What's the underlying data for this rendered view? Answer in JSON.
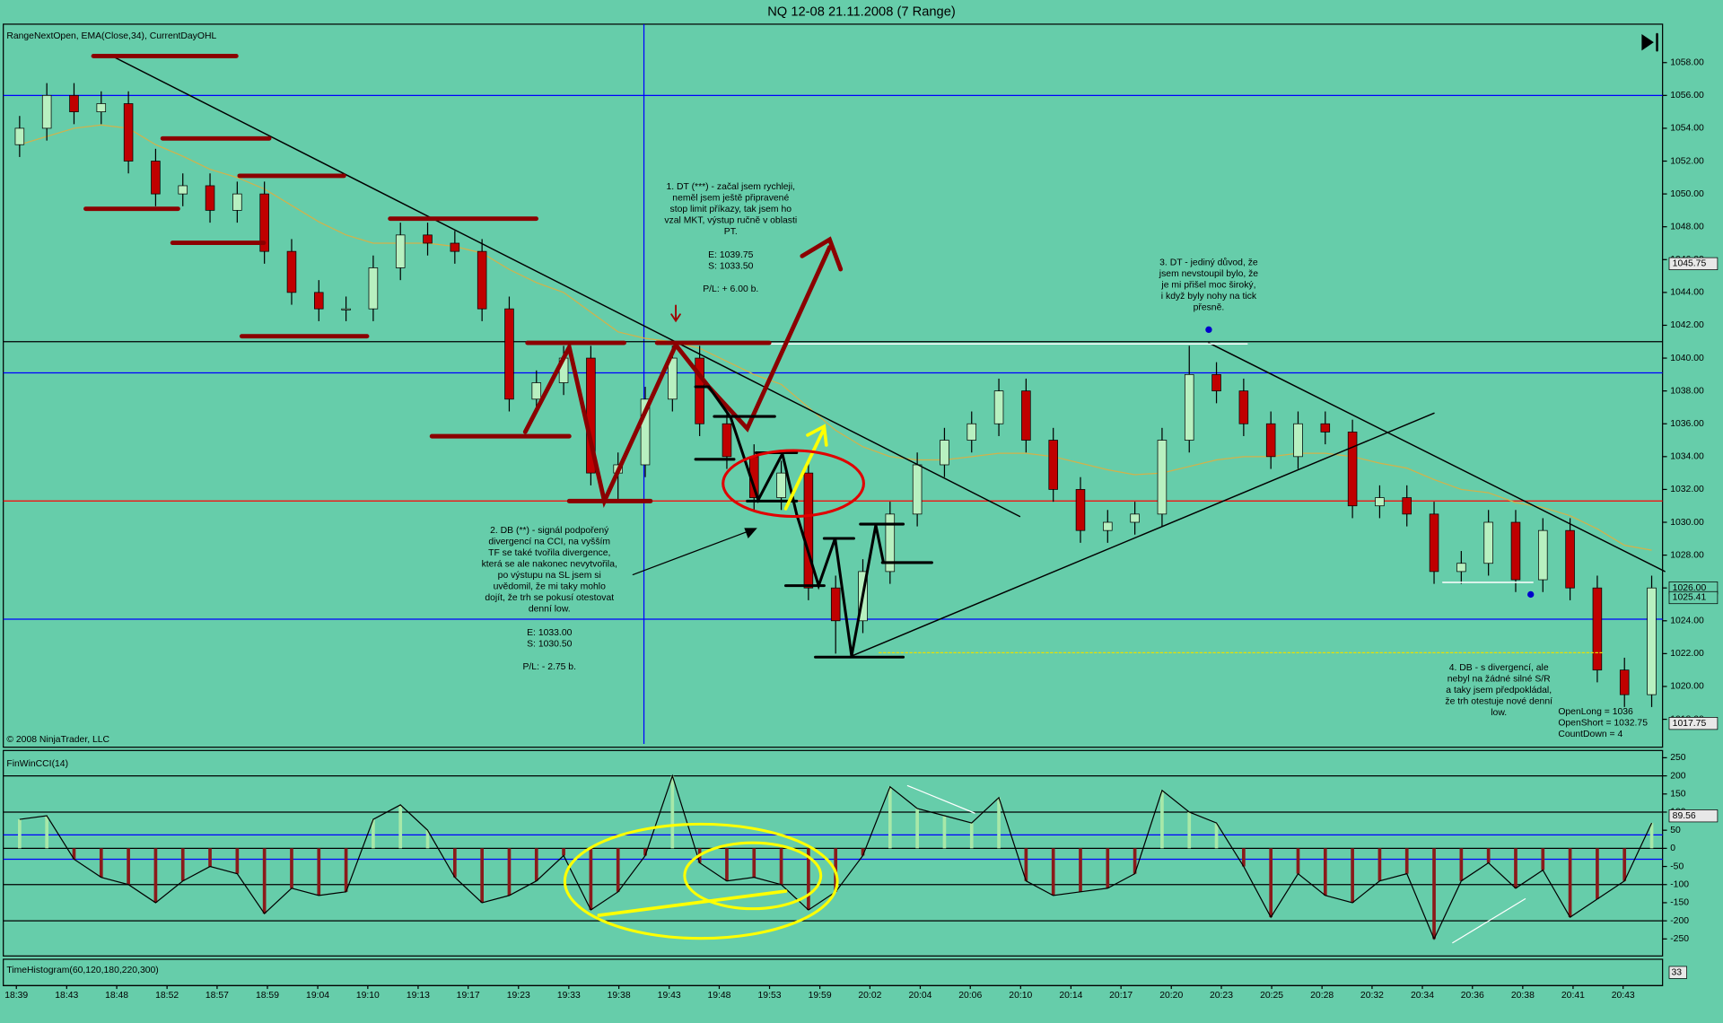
{
  "chart_data": [
    {
      "type": "candlestick",
      "title": "NQ 12-08  21.11.2008 (7 Range)",
      "subtitle": "RangeNextOpen, EMA(Close,34), CurrentDayOHL",
      "copyright": "© 2008 NinjaTrader, LLC",
      "x": [
        0,
        1,
        2,
        3,
        4,
        5,
        6,
        7,
        8,
        9,
        10,
        11,
        12,
        13,
        14,
        15,
        16,
        17,
        18,
        19,
        20,
        21,
        22,
        23,
        24,
        25,
        26,
        27,
        28,
        29,
        30,
        31,
        32,
        33,
        34,
        35,
        36,
        37,
        38,
        39,
        40,
        41,
        42,
        43,
        44,
        45,
        46,
        47,
        48,
        49,
        50,
        51,
        52,
        53,
        54,
        55,
        56,
        57,
        58,
        59,
        60
      ],
      "open": [
        1053,
        1054,
        1056,
        1055,
        1055.5,
        1052,
        1050,
        1050.5,
        1049,
        1050,
        1046.5,
        1044,
        1043,
        1043,
        1045.5,
        1047.5,
        1047,
        1046.5,
        1043,
        1037.5,
        1038.5,
        1040,
        1033,
        1033.5,
        1037.5,
        1040,
        1036,
        1034,
        1031.5,
        1033,
        1026,
        1024,
        1027,
        1030.5,
        1033.5,
        1035,
        1036,
        1038,
        1035,
        1032,
        1029.5,
        1030,
        1030.5,
        1035,
        1039,
        1038,
        1036,
        1034,
        1036,
        1035.5,
        1031,
        1031.5,
        1030.5,
        1027,
        1027.5,
        1030,
        1026.5,
        1029.5,
        1026,
        1021,
        1019.5
      ],
      "high": [
        1054.75,
        1056.75,
        1056.75,
        1056.25,
        1056.25,
        1052.75,
        1051.25,
        1051.25,
        1050.75,
        1050.75,
        1047.25,
        1044.75,
        1043.75,
        1046.25,
        1048.25,
        1048.25,
        1047.75,
        1047.25,
        1043.75,
        1039.25,
        1040.75,
        1040.75,
        1034.25,
        1038.25,
        1040.75,
        1040.75,
        1036.75,
        1034.75,
        1033.75,
        1033.75,
        1026.75,
        1027.75,
        1031.25,
        1034.25,
        1035.75,
        1036.75,
        1038.75,
        1038.75,
        1035.75,
        1032.75,
        1030.75,
        1031.25,
        1035.75,
        1040.75,
        1039.75,
        1038.75,
        1036.75,
        1036.75,
        1036.75,
        1036.25,
        1032.25,
        1032.25,
        1031.25,
        1028.25,
        1030.75,
        1030.75,
        1030.25,
        1030.25,
        1026.75,
        1021.75,
        1026.75
      ],
      "low": [
        1052.25,
        1053.25,
        1054.25,
        1054.25,
        1051.25,
        1049.25,
        1049.25,
        1048.25,
        1048.25,
        1045.75,
        1043.25,
        1042.25,
        1042.25,
        1042.25,
        1044.75,
        1046.25,
        1045.75,
        1042.25,
        1036.75,
        1036.75,
        1037.75,
        1032.25,
        1031.25,
        1032.75,
        1036.75,
        1035.25,
        1033.25,
        1030.75,
        1030.75,
        1025.25,
        1022,
        1023.25,
        1026.25,
        1029.75,
        1032.75,
        1034.25,
        1035.25,
        1034.25,
        1031.25,
        1028.75,
        1028.75,
        1029.25,
        1029.75,
        1034.25,
        1037.25,
        1035.25,
        1033.25,
        1033.25,
        1034.75,
        1030.25,
        1030.25,
        1029.75,
        1026.25,
        1026.25,
        1026.75,
        1025.75,
        1025.75,
        1025.25,
        1020.25,
        1018.75,
        1018.75
      ],
      "close": [
        1054,
        1056,
        1055,
        1055.5,
        1052,
        1050,
        1050.5,
        1049,
        1050,
        1046.5,
        1044,
        1043,
        1043,
        1045.5,
        1047.5,
        1047,
        1046.5,
        1043,
        1037.5,
        1038.5,
        1040,
        1033,
        1033.5,
        1037.5,
        1040,
        1036,
        1034,
        1031.5,
        1033,
        1026,
        1024,
        1027,
        1030.5,
        1033.5,
        1035,
        1036,
        1038,
        1035,
        1032,
        1029.5,
        1030,
        1030.5,
        1035,
        1039,
        1038,
        1036,
        1034,
        1036,
        1035.5,
        1031,
        1031.5,
        1030.5,
        1027,
        1027.5,
        1030,
        1026.5,
        1029.5,
        1026,
        1021,
        1019.5,
        1026
      ],
      "ema": [
        1053,
        1053.5,
        1054,
        1054.2,
        1054,
        1053,
        1052.3,
        1051.5,
        1051,
        1050.3,
        1049.3,
        1048.3,
        1047.5,
        1047,
        1047,
        1047,
        1046.8,
        1046.4,
        1045.4,
        1044.6,
        1044,
        1042.8,
        1041.6,
        1041.2,
        1041,
        1040.6,
        1039.8,
        1039,
        1038.4,
        1037,
        1035.6,
        1034.6,
        1034,
        1033.8,
        1033.8,
        1034,
        1034.2,
        1034.2,
        1034,
        1033.6,
        1033.2,
        1032.9,
        1033,
        1033.4,
        1033.8,
        1034,
        1034,
        1034.2,
        1034.2,
        1034,
        1033.6,
        1033.3,
        1032.6,
        1032,
        1031.8,
        1031.2,
        1030.9,
        1030.4,
        1029.6,
        1028.6,
        1028.3
      ],
      "up_color": "#b8f0c0",
      "down_color": "#c00000",
      "ema_color": "#d2b24a",
      "xlim": [
        -0.6,
        60.4
      ],
      "xticks": [
        {
          "value": -0.12,
          "label": "18:39"
        },
        {
          "value": 1.73,
          "label": "18:43"
        },
        {
          "value": 3.57,
          "label": "18:48"
        },
        {
          "value": 5.42,
          "label": "18:52"
        },
        {
          "value": 7.26,
          "label": "18:57"
        },
        {
          "value": 9.11,
          "label": "18:59"
        },
        {
          "value": 10.96,
          "label": "19:04"
        },
        {
          "value": 12.8,
          "label": "19:10"
        },
        {
          "value": 14.65,
          "label": "19:13"
        },
        {
          "value": 16.49,
          "label": "19:17"
        },
        {
          "value": 18.34,
          "label": "19:23"
        },
        {
          "value": 20.19,
          "label": "19:33"
        },
        {
          "value": 22.03,
          "label": "19:38"
        },
        {
          "value": 23.88,
          "label": "19:43"
        },
        {
          "value": 25.72,
          "label": "19:48"
        },
        {
          "value": 27.57,
          "label": "19:53"
        },
        {
          "value": 29.42,
          "label": "19:59"
        },
        {
          "value": 31.26,
          "label": "20:02"
        },
        {
          "value": 33.11,
          "label": "20:04"
        },
        {
          "value": 34.95,
          "label": "20:06"
        },
        {
          "value": 36.8,
          "label": "20:10"
        },
        {
          "value": 38.65,
          "label": "20:14"
        },
        {
          "value": 40.49,
          "label": "20:17"
        },
        {
          "value": 42.34,
          "label": "20:20"
        },
        {
          "value": 44.18,
          "label": "20:23"
        },
        {
          "value": 46.03,
          "label": "20:25"
        },
        {
          "value": 47.88,
          "label": "20:28"
        },
        {
          "value": 49.72,
          "label": "20:32"
        },
        {
          "value": 51.57,
          "label": "20:34"
        },
        {
          "value": 53.41,
          "label": "20:36"
        },
        {
          "value": 55.26,
          "label": "20:38"
        },
        {
          "value": 57.11,
          "label": "20:41"
        },
        {
          "value": 58.95,
          "label": "20:43"
        }
      ],
      "ylim": [
        1016.3,
        1060.34
      ],
      "yticks": [
        {
          "value": 1058,
          "label": "1058.00"
        },
        {
          "value": 1056,
          "label": "1056.00"
        },
        {
          "value": 1054,
          "label": "1054.00"
        },
        {
          "value": 1052,
          "label": "1052.00"
        },
        {
          "value": 1050,
          "label": "1050.00"
        },
        {
          "value": 1048,
          "label": "1048.00"
        },
        {
          "value": 1046,
          "label": "1046.00"
        },
        {
          "value": 1044,
          "label": "1044.00"
        },
        {
          "value": 1042,
          "label": "1042.00"
        },
        {
          "value": 1040,
          "label": "1040.00"
        },
        {
          "value": 1038,
          "label": "1038.00"
        },
        {
          "value": 1036,
          "label": "1036.00"
        },
        {
          "value": 1034,
          "label": "1034.00"
        },
        {
          "value": 1032,
          "label": "1032.00"
        },
        {
          "value": 1030,
          "label": "1030.00"
        },
        {
          "value": 1028,
          "label": "1028.00"
        },
        {
          "value": 1026,
          "label": "1026.00"
        },
        {
          "value": 1024,
          "label": "1024.00"
        },
        {
          "value": 1022,
          "label": "1022.00"
        },
        {
          "value": 1020,
          "label": "1020.00"
        },
        {
          "value": 1018,
          "label": "1018.00"
        }
      ],
      "levels": [
        {
          "value": 1056,
          "color": "#0000ff"
        },
        {
          "value": 1041,
          "color": "#000000"
        },
        {
          "value": 1039.1,
          "color": "#0000ff"
        },
        {
          "value": 1031.3,
          "color": "#ff0000"
        },
        {
          "value": 1024.1,
          "color": "#0000ff"
        }
      ],
      "price_markers": [
        {
          "value": 1045.75,
          "label": "1045.75"
        },
        {
          "value": 1026,
          "label": "1026.00"
        },
        {
          "value": 1025.41,
          "label": "1025.41"
        },
        {
          "value": 1017.75,
          "label": "1017.75"
        }
      ],
      "annotations": [
        [
          "1. DT (***) - začal jsem rychleji,",
          "neměl jsem ještě připravené",
          "stop limit příkazy, tak jsem ho",
          "vzal MKT, výstup ručně v oblasti",
          "PT."
        ],
        [
          "E: 1039.75",
          "S: 1033.50"
        ],
        [
          "P/L: + 6.00 b."
        ],
        [
          "2. DB (**) - signál podpořený",
          "divergencí na CCI, na vyšším",
          "TF se také tvořila divergence,",
          "která se ale nakonec nevytvořila,",
          "po výstupu na SL jsem si",
          "uvědomil, že mi taky mohlo",
          "dojít, že trh se pokusí otestovat",
          "denní low."
        ],
        [
          "E: 1033.00",
          "S: 1030.50"
        ],
        [
          "P/L: - 2.75 b."
        ],
        [
          "3. DT - jediný důvod, že",
          "jsem nevstoupil bylo, že",
          "je mi přišel moc široký,",
          "i když byly nohy na tick",
          "přesně."
        ],
        [
          "4. DB - s divergencí, ale",
          "nebyl na žádné silné S/R",
          "a taky jsem předpokládal,",
          "že trh otestuje nové denní",
          "low."
        ],
        [
          "OpenLong = 1036",
          "OpenShort = 1032.75",
          "CountDown = 4"
        ]
      ]
    },
    {
      "type": "bar",
      "title": "FinWinCCI(14)",
      "values": [
        80,
        90,
        -30,
        -80,
        -100,
        -150,
        -90,
        -50,
        -70,
        -180,
        -110,
        -130,
        -120,
        80,
        120,
        50,
        -80,
        -150,
        -130,
        -90,
        -20,
        -170,
        -120,
        -20,
        200,
        -40,
        -90,
        -80,
        -100,
        -170,
        -120,
        -20,
        170,
        110,
        90,
        70,
        140,
        -90,
        -130,
        -120,
        -110,
        -70,
        160,
        100,
        70,
        -50,
        -190,
        -70,
        -130,
        -150,
        -90,
        -70,
        -250,
        -90,
        -40,
        -110,
        -60,
        -190,
        -140,
        -90,
        70
      ],
      "positive_color": "#a8e8a8",
      "negative_color": "#8b1a1a",
      "line_color": "#000000",
      "ylim": [
        -297,
        270
      ],
      "yticks": [
        250,
        200,
        150,
        100,
        50,
        0,
        -50,
        -100,
        -150,
        -200,
        -250
      ],
      "levels": [
        {
          "value": 200,
          "color": "#000000"
        },
        {
          "value": 100,
          "color": "#000000"
        },
        {
          "value": 37,
          "color": "#0000ff"
        },
        {
          "value": 0,
          "color": "#000000"
        },
        {
          "value": -30,
          "color": "#0000ff"
        },
        {
          "value": -100,
          "color": "#000000"
        },
        {
          "value": -200,
          "color": "#000000"
        }
      ],
      "marker": 89.56
    },
    {
      "type": "bar",
      "title": "TimeHistogram(60,120,180,220,300)",
      "marker": 33
    }
  ]
}
